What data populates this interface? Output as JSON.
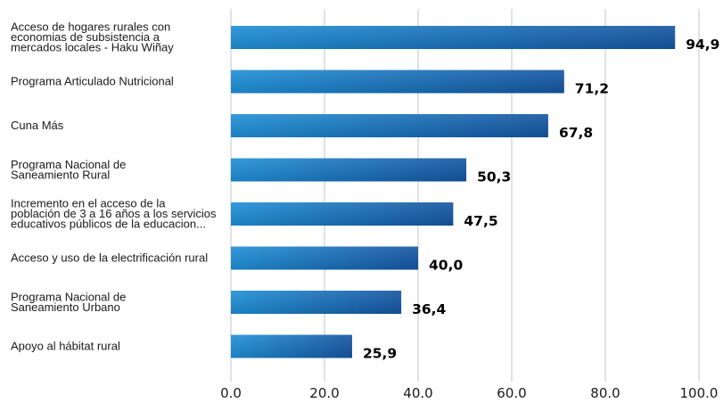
{
  "chart_data": {
    "type": "bar",
    "orientation": "horizontal",
    "categories": [
      [
        "Acceso de hogares rurales con",
        "economias de subsistencia a",
        "mercados locales - Haku Wiñay"
      ],
      [
        "Programa Articulado Nutricional"
      ],
      [
        "Cuna Más"
      ],
      [
        "Programa Nacional de",
        "Saneamiento Rural"
      ],
      [
        "Incremento en el acceso de la",
        "población de 3 a 16 años a los servicios",
        "educativos públicos de la educacion..."
      ],
      [
        "Acceso y uso de la electrificación rural"
      ],
      [
        "Programa Nacional de",
        "Saneamiento Urbano"
      ],
      [
        "Apoyo al hábitat rural"
      ]
    ],
    "values": [
      94.9,
      71.2,
      67.8,
      50.3,
      47.5,
      40.0,
      36.4,
      25.9
    ],
    "value_labels": [
      "94,9",
      "71,2",
      "67,8",
      "50,3",
      "47,5",
      "40,0",
      "36,4",
      "25,9"
    ],
    "xlim": [
      0,
      100
    ],
    "xticks": [
      0,
      20,
      40,
      60,
      80,
      100
    ],
    "xtick_labels": [
      "0.0",
      "20.0",
      "40.0",
      "60.0",
      "80.0",
      "100.0"
    ],
    "grid": "vertical",
    "bar_color_start": "#1e8fd6",
    "bar_color_end": "#1455a0",
    "title": "",
    "xlabel": "",
    "ylabel": ""
  }
}
